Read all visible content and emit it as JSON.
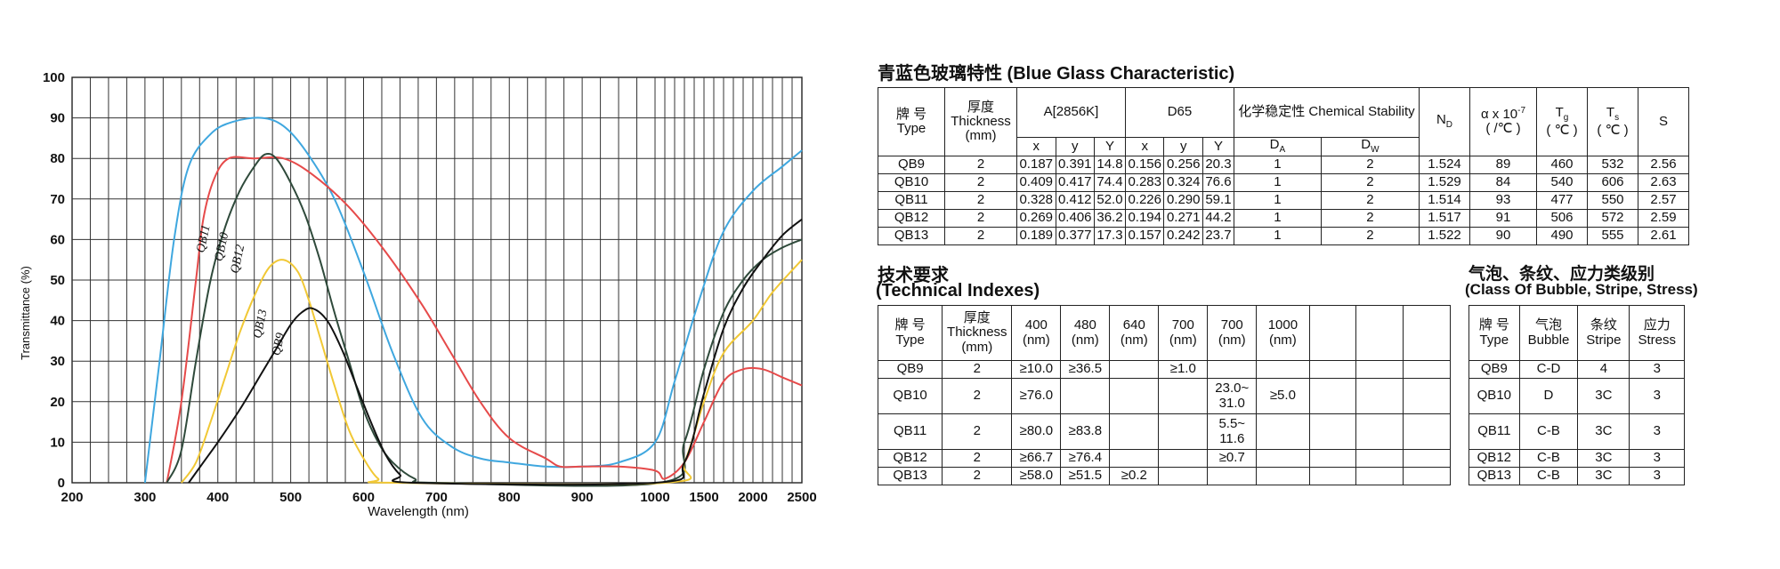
{
  "chart_data": {
    "type": "line",
    "title": "",
    "xlabel": "Wavelength (nm)",
    "ylabel": "Transmittance (%)",
    "ylim": [
      0,
      100
    ],
    "yticks": [
      "0",
      "10",
      "20",
      "30",
      "40",
      "50",
      "60",
      "70",
      "80",
      "90",
      "100"
    ],
    "xticks": [
      "200",
      "300",
      "400",
      "500",
      "600",
      "700",
      "800",
      "900",
      "1000",
      "1500",
      "2000",
      "2500"
    ],
    "x_axis_note": "piecewise axis: 200–1000 nm linear, 1000–2500 nm compressed",
    "grid": true,
    "legend": "inline labels on curves",
    "series": [
      {
        "name": "QB11",
        "color": "#3fa7df",
        "points": [
          [
            300,
            0
          ],
          [
            320,
            30
          ],
          [
            340,
            60
          ],
          [
            360,
            78
          ],
          [
            390,
            86
          ],
          [
            420,
            89
          ],
          [
            460,
            90
          ],
          [
            490,
            88
          ],
          [
            520,
            82
          ],
          [
            560,
            70
          ],
          [
            600,
            52
          ],
          [
            640,
            32
          ],
          [
            680,
            16
          ],
          [
            720,
            9
          ],
          [
            760,
            6
          ],
          [
            800,
            5
          ],
          [
            850,
            4
          ],
          [
            900,
            4
          ],
          [
            950,
            5
          ],
          [
            1000,
            10
          ],
          [
            1200,
            25
          ],
          [
            1450,
            45
          ],
          [
            1700,
            62
          ],
          [
            2000,
            72
          ],
          [
            2300,
            78
          ],
          [
            2500,
            82
          ]
        ]
      },
      {
        "name": "QB10",
        "color": "#e64a4a",
        "points": [
          [
            330,
            0
          ],
          [
            350,
            20
          ],
          [
            370,
            50
          ],
          [
            380,
            65
          ],
          [
            395,
            75
          ],
          [
            415,
            80
          ],
          [
            450,
            80
          ],
          [
            490,
            80
          ],
          [
            530,
            76
          ],
          [
            580,
            68
          ],
          [
            630,
            57
          ],
          [
            680,
            44
          ],
          [
            720,
            32
          ],
          [
            760,
            20
          ],
          [
            800,
            11
          ],
          [
            850,
            6
          ],
          [
            870,
            4
          ],
          [
            900,
            4
          ],
          [
            950,
            4
          ],
          [
            1000,
            3
          ],
          [
            1100,
            1
          ],
          [
            1300,
            5
          ],
          [
            1500,
            15
          ],
          [
            1700,
            25
          ],
          [
            1900,
            28
          ],
          [
            2100,
            28
          ],
          [
            2300,
            26
          ],
          [
            2500,
            24
          ]
        ]
      },
      {
        "name": "QB12",
        "color": "#2f4a3b",
        "points": [
          [
            330,
            0
          ],
          [
            350,
            8
          ],
          [
            370,
            30
          ],
          [
            390,
            50
          ],
          [
            410,
            63
          ],
          [
            430,
            72
          ],
          [
            450,
            78
          ],
          [
            465,
            81
          ],
          [
            480,
            80
          ],
          [
            500,
            74
          ],
          [
            520,
            66
          ],
          [
            540,
            55
          ],
          [
            560,
            42
          ],
          [
            580,
            30
          ],
          [
            600,
            18
          ],
          [
            620,
            10
          ],
          [
            640,
            5
          ],
          [
            670,
            1
          ],
          [
            700,
            0
          ],
          [
            1050,
            0
          ],
          [
            1300,
            10
          ],
          [
            1500,
            28
          ],
          [
            1700,
            42
          ],
          [
            1900,
            50
          ],
          [
            2100,
            55
          ],
          [
            2300,
            58
          ],
          [
            2500,
            60
          ]
        ]
      },
      {
        "name": "QB13",
        "color": "#f1c835",
        "points": [
          [
            350,
            0
          ],
          [
            370,
            5
          ],
          [
            390,
            15
          ],
          [
            410,
            26
          ],
          [
            430,
            37
          ],
          [
            450,
            46
          ],
          [
            470,
            53
          ],
          [
            490,
            55
          ],
          [
            510,
            52
          ],
          [
            525,
            45
          ],
          [
            540,
            36
          ],
          [
            560,
            24
          ],
          [
            580,
            13
          ],
          [
            600,
            6
          ],
          [
            620,
            1
          ],
          [
            640,
            0
          ],
          [
            1100,
            0
          ],
          [
            1300,
            5
          ],
          [
            1500,
            20
          ],
          [
            1700,
            32
          ],
          [
            2000,
            40
          ],
          [
            2200,
            47
          ],
          [
            2500,
            55
          ]
        ]
      },
      {
        "name": "QB9",
        "color": "#111111",
        "points": [
          [
            360,
            0
          ],
          [
            380,
            5
          ],
          [
            400,
            10
          ],
          [
            430,
            18
          ],
          [
            460,
            27
          ],
          [
            480,
            33
          ],
          [
            500,
            39
          ],
          [
            515,
            42
          ],
          [
            530,
            43
          ],
          [
            550,
            40
          ],
          [
            570,
            33
          ],
          [
            590,
            24
          ],
          [
            610,
            15
          ],
          [
            630,
            7
          ],
          [
            650,
            2
          ],
          [
            670,
            0
          ],
          [
            1000,
            0
          ],
          [
            1300,
            5
          ],
          [
            1500,
            22
          ],
          [
            1700,
            38
          ],
          [
            1900,
            48
          ],
          [
            2100,
            55
          ],
          [
            2300,
            61
          ],
          [
            2500,
            65
          ]
        ]
      }
    ],
    "annotations": [
      {
        "text": "QB11",
        "color": "#111"
      },
      {
        "text": "QB10",
        "color": "#111"
      },
      {
        "text": "QB12",
        "color": "#111"
      },
      {
        "text": "QB13",
        "color": "#111"
      },
      {
        "text": "QB9",
        "color": "#111"
      }
    ]
  },
  "section1": {
    "title": "青蓝色玻璃特性 (Blue Glass Characteristic)",
    "h_type": "牌 号 Type",
    "h_thickness": "厚度 Thickness (mm)",
    "h_a": "A[2856K]",
    "h_d65": "D65",
    "h_chem": "化学稳定性 Chemical Stability",
    "h_nd": "N",
    "h_nd_sub": "D",
    "h_alpha": "α x 10",
    "h_alpha_sup": "-7",
    "h_alpha_unit": "( /℃ )",
    "h_tg": "T",
    "h_tg_sub": "g",
    "h_tg_unit": "( ℃ )",
    "h_ts": "T",
    "h_ts_sub": "s",
    "h_ts_unit": "( ℃ )",
    "h_s": "S",
    "sub_x": "x",
    "sub_y": "y",
    "sub_Y": "Y",
    "sub_da": "D",
    "sub_da_sub": "A",
    "sub_dw": "D",
    "sub_dw_sub": "W",
    "rows": [
      [
        "QB9",
        "2",
        "0.187",
        "0.391",
        "14.8",
        "0.156",
        "0.256",
        "20.3",
        "1",
        "2",
        "1.524",
        "89",
        "460",
        "532",
        "2.56"
      ],
      [
        "QB10",
        "2",
        "0.409",
        "0.417",
        "74.4",
        "0.283",
        "0.324",
        "76.6",
        "1",
        "2",
        "1.529",
        "84",
        "540",
        "606",
        "2.63"
      ],
      [
        "QB11",
        "2",
        "0.328",
        "0.412",
        "52.0",
        "0.226",
        "0.290",
        "59.1",
        "1",
        "2",
        "1.514",
        "93",
        "477",
        "550",
        "2.57"
      ],
      [
        "QB12",
        "2",
        "0.269",
        "0.406",
        "36.2",
        "0.194",
        "0.271",
        "44.2",
        "1",
        "2",
        "1.517",
        "91",
        "506",
        "572",
        "2.59"
      ],
      [
        "QB13",
        "2",
        "0.189",
        "0.377",
        "17.3",
        "0.157",
        "0.242",
        "23.7",
        "1",
        "2",
        "1.522",
        "90",
        "490",
        "555",
        "2.61"
      ]
    ]
  },
  "section2": {
    "title_cn": "技术要求",
    "title_en": "(Technical Indexes)",
    "headers": [
      "牌 号 Type",
      "厚度 Thickness (mm)",
      "400 (nm)",
      "480 (nm)",
      "640 (nm)",
      "700 (nm)",
      "700 (nm)",
      "1000 (nm)",
      "",
      "",
      ""
    ],
    "rows": [
      [
        "QB9",
        "2",
        "≥10.0",
        "≥36.5",
        "",
        "≥1.0",
        "",
        "",
        "",
        "",
        ""
      ],
      [
        "QB10",
        "2",
        "≥76.0",
        "",
        "",
        "",
        "23.0~ 31.0",
        "≥5.0",
        "",
        "",
        ""
      ],
      [
        "QB11",
        "2",
        "≥80.0",
        "≥83.8",
        "",
        "",
        "5.5~ 11.6",
        "",
        "",
        "",
        ""
      ],
      [
        "QB12",
        "2",
        "≥66.7",
        "≥76.4",
        "",
        "",
        "≥0.7",
        "",
        "",
        "",
        ""
      ],
      [
        "QB13",
        "2",
        "≥58.0",
        "≥51.5",
        "≥0.2",
        "",
        "",
        "",
        "",
        "",
        ""
      ]
    ]
  },
  "section3": {
    "title_cn": "气泡、条纹、应力类级别",
    "title_en": "(Class Of Bubble, Stripe, Stress)",
    "headers": [
      "牌 号 Type",
      "气泡 Bubble",
      "条纹 Stripe",
      "应力 Stress"
    ],
    "rows": [
      [
        "QB9",
        "C-D",
        "4",
        "3"
      ],
      [
        "QB10",
        "D",
        "3C",
        "3"
      ],
      [
        "QB11",
        "C-B",
        "3C",
        "3"
      ],
      [
        "QB12",
        "C-B",
        "3C",
        "3"
      ],
      [
        "QB13",
        "C-B",
        "3C",
        "3"
      ]
    ]
  }
}
